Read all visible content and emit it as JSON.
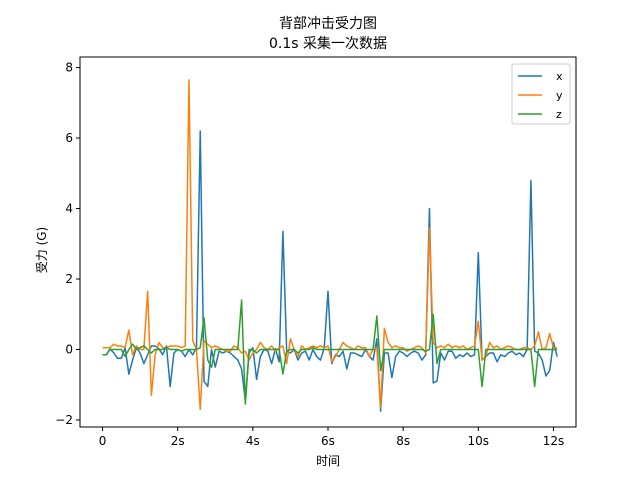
{
  "chart_data": {
    "type": "line",
    "title": "背部冲击受力图",
    "subtitle": "0.1s 采集一次数据",
    "xlabel": "时间",
    "ylabel": "受力 (G)",
    "xlim": [
      -0.6,
      12.6
    ],
    "ylim": [
      -2.2,
      8.3
    ],
    "xticks": [
      0,
      2,
      4,
      6,
      8,
      10,
      12
    ],
    "xtick_labels": [
      "0",
      "2s",
      "4s",
      "6s",
      "8s",
      "10s",
      "12s"
    ],
    "yticks": [
      -2,
      0,
      2,
      4,
      6,
      8
    ],
    "ytick_labels": [
      "−2",
      "0",
      "2",
      "4",
      "6",
      "8"
    ],
    "grid": false,
    "legend_position": "top-right",
    "series": [
      {
        "name": "x",
        "color": "#1f77b4",
        "values": [
          -0.15,
          -0.15,
          0.02,
          -0.1,
          -0.25,
          -0.25,
          0.05,
          -0.7,
          -0.3,
          0.05,
          -0.1,
          -0.4,
          -0.15,
          0.1,
          0.1,
          0.02,
          -0.15,
          0.1,
          -1.05,
          -0.1,
          0.0,
          -0.05,
          -0.2,
          0.0,
          -0.15,
          0.05,
          6.2,
          -0.9,
          -1.05,
          0.0,
          -0.5,
          -0.05,
          -0.1,
          -0.05,
          -0.1,
          -0.2,
          -0.3,
          -0.55,
          -1.45,
          -0.1,
          0.05,
          -0.85,
          -0.2,
          0.0,
          -0.05,
          -0.4,
          0.02,
          -0.35,
          3.35,
          -0.05,
          -0.1,
          0.0,
          -0.3,
          -0.1,
          -0.05,
          -0.3,
          0.0,
          -0.2,
          -0.3,
          0.05,
          1.65,
          -0.4,
          -0.15,
          -0.2,
          -0.05,
          -0.55,
          -0.1,
          -0.1,
          -0.15,
          -0.2,
          0.0,
          -0.2,
          -0.3,
          0.3,
          -1.75,
          -0.1,
          -0.1,
          -0.8,
          -0.2,
          -0.05,
          -0.1,
          -0.2,
          -0.1,
          -0.05,
          -0.1,
          -0.3,
          -0.15,
          4.0,
          -0.95,
          -0.9,
          -0.1,
          -0.3,
          -0.05,
          -0.05,
          -0.25,
          -0.15,
          -0.2,
          -0.1,
          -0.2,
          -0.15,
          2.75,
          -0.3,
          -0.2,
          -0.1,
          -0.1,
          -0.35,
          -0.15,
          -0.2,
          -0.1,
          -0.05,
          -0.15,
          -0.1,
          -0.2,
          0.0,
          4.8,
          -0.05,
          -0.1,
          -0.3,
          -0.75,
          -0.6,
          0.2,
          -0.2
        ]
      },
      {
        "name": "y",
        "color": "#ff7f0e",
        "values": [
          0.05,
          0.05,
          0.05,
          0.15,
          0.1,
          0.1,
          0.05,
          0.55,
          -0.15,
          0.1,
          0.0,
          0.0,
          1.65,
          -1.3,
          -0.15,
          0.2,
          0.05,
          0.05,
          0.1,
          0.1,
          0.1,
          0.05,
          0.1,
          7.65,
          0.25,
          0.0,
          -1.7,
          0.25,
          0.15,
          0.05,
          0.1,
          0.05,
          0.0,
          -0.05,
          -0.05,
          0.1,
          0.05,
          -0.1,
          -0.05,
          -0.3,
          -0.1,
          0.0,
          0.2,
          0.05,
          0.0,
          0.1,
          -0.05,
          0.05,
          0.1,
          -0.4,
          0.3,
          0.0,
          -0.2,
          0.1,
          0.0,
          0.05,
          0.1,
          0.05,
          0.1,
          0.05,
          0.1,
          -0.35,
          -0.2,
          0.0,
          0.2,
          0.1,
          0.05,
          0.0,
          0.1,
          0.05,
          0.05,
          -0.2,
          0.0,
          0.05,
          -1.65,
          0.6,
          0.2,
          0.05,
          0.1,
          0.05,
          0.05,
          -0.05,
          0.0,
          0.05,
          0.1,
          0.05,
          -0.1,
          3.45,
          0.2,
          0.05,
          0.1,
          0.05,
          0.15,
          0.05,
          0.1,
          0.05,
          0.1,
          0.0,
          0.05,
          0.1,
          0.8,
          -0.3,
          -0.2,
          0.2,
          0.05,
          0.1,
          0.0,
          0.05,
          0.1,
          0.05,
          0.0,
          0.0,
          0.05,
          0.05,
          0.0,
          0.1,
          0.5,
          0.0,
          0.05,
          0.45,
          0.05,
          0.05
        ]
      },
      {
        "name": "z",
        "color": "#2ca02c",
        "values": [
          -0.15,
          -0.15,
          0.0,
          0.0,
          0.0,
          0.0,
          -0.2,
          0.0,
          0.15,
          0.0,
          0.05,
          0.1,
          0.0,
          -0.1,
          0.0,
          0.0,
          0.0,
          0.05,
          0.0,
          0.0,
          0.0,
          -0.05,
          0.0,
          0.0,
          0.0,
          0.0,
          0.05,
          0.9,
          -0.3,
          -0.5,
          0.0,
          0.0,
          0.0,
          0.0,
          0.0,
          0.0,
          0.0,
          1.4,
          -1.55,
          0.0,
          0.0,
          -0.1,
          0.0,
          0.0,
          0.0,
          0.0,
          0.0,
          0.0,
          -0.7,
          -0.05,
          0.0,
          0.0,
          -0.1,
          0.0,
          0.0,
          0.0,
          0.05,
          0.0,
          0.0,
          0.0,
          0.0,
          0.0,
          0.0,
          0.0,
          0.0,
          0.0,
          0.0,
          0.0,
          0.0,
          0.0,
          0.0,
          0.0,
          0.0,
          0.95,
          -0.6,
          0.0,
          0.0,
          0.0,
          0.0,
          0.0,
          0.0,
          0.0,
          0.0,
          0.0,
          0.0,
          0.0,
          -0.05,
          0.0,
          1.0,
          -0.4,
          0.0,
          0.0,
          0.0,
          0.0,
          0.0,
          0.0,
          0.0,
          0.0,
          0.0,
          0.0,
          0.0,
          -1.05,
          0.0,
          0.0,
          0.0,
          0.0,
          0.0,
          0.0,
          0.0,
          0.0,
          0.0,
          0.0,
          0.0,
          0.0,
          0.0,
          -1.05,
          0.0,
          0.0,
          0.0,
          0.0,
          0.0,
          0.0
        ]
      }
    ],
    "x_values_step": 0.1
  }
}
